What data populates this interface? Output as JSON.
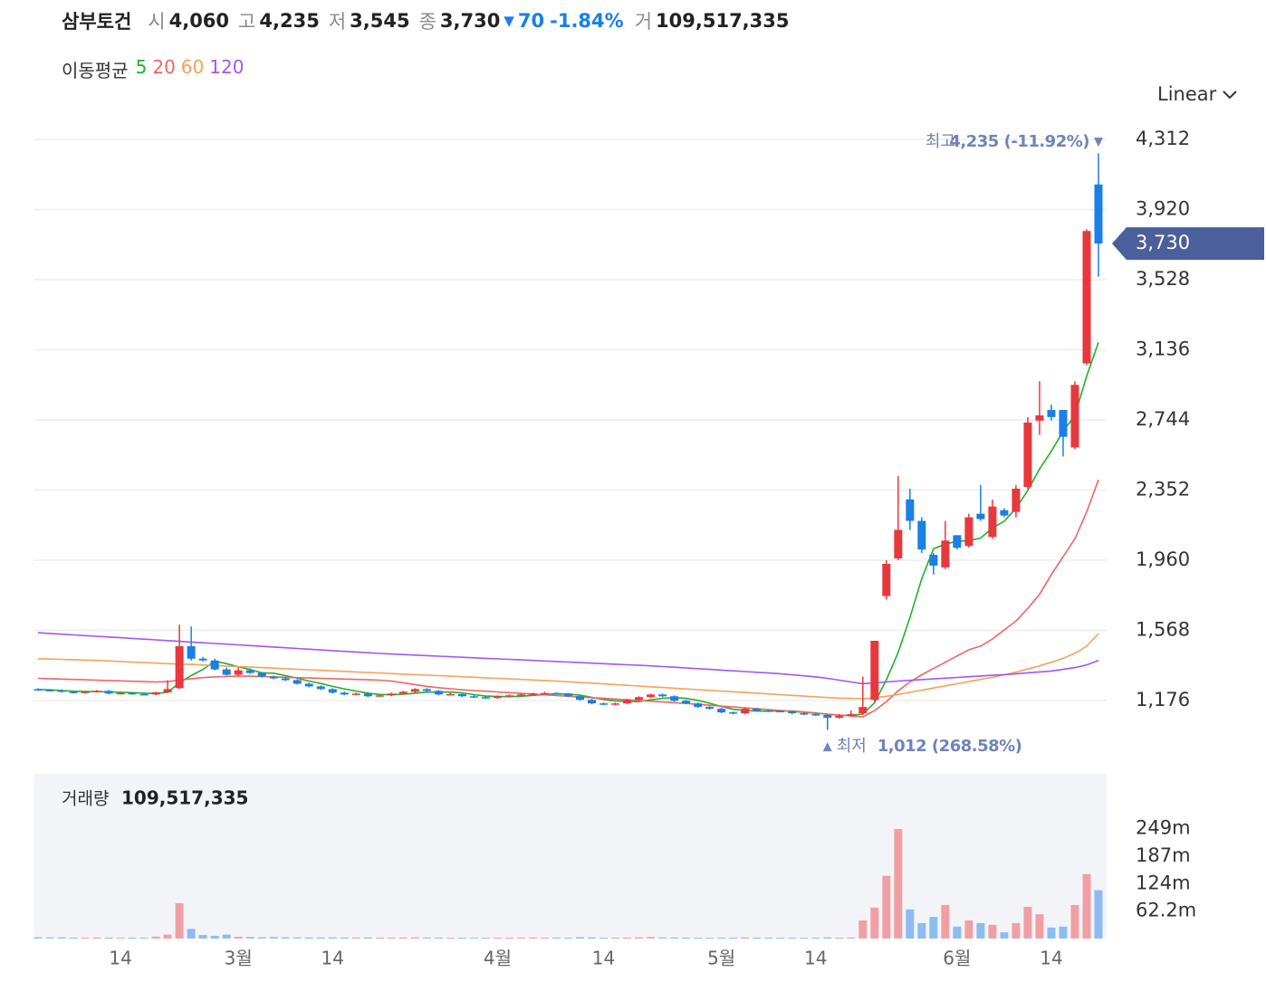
{
  "header": {
    "name": "삼부토건",
    "open_label": "시",
    "open": "4,060",
    "high_label": "고",
    "high": "4,235",
    "low_label": "저",
    "low": "3,545",
    "close_label": "종",
    "close": "3,730",
    "change": "70",
    "change_rate": "-1.84%",
    "volume_label": "거",
    "volume": "109,517,335",
    "scale_mode": "Linear"
  },
  "chart_data": [
    {
      "type": "candlestick",
      "legend_title": "이동평균",
      "categories": [
        null,
        null,
        null,
        null,
        null,
        null,
        null,
        "14",
        null,
        null,
        null,
        null,
        null,
        null,
        null,
        null,
        null,
        "3월",
        null,
        null,
        null,
        null,
        null,
        null,
        null,
        "14",
        null,
        null,
        null,
        null,
        null,
        null,
        null,
        null,
        null,
        null,
        null,
        null,
        null,
        "4월",
        null,
        null,
        null,
        null,
        null,
        null,
        null,
        null,
        "14",
        null,
        null,
        null,
        null,
        null,
        null,
        null,
        null,
        null,
        "5월",
        null,
        null,
        null,
        null,
        null,
        null,
        null,
        "14",
        null,
        null,
        null,
        null,
        null,
        null,
        null,
        null,
        null,
        null,
        null,
        "6월",
        null,
        null,
        null,
        null,
        null,
        null,
        null,
        "14",
        null,
        null,
        null,
        null
      ],
      "open": [
        1240,
        1235,
        1232,
        1225,
        1220,
        1225,
        1230,
        1215,
        1218,
        1212,
        1210,
        1222,
        1245,
        1480,
        1410,
        1400,
        1350,
        1320,
        1345,
        1330,
        1310,
        1300,
        1290,
        1270,
        1255,
        1240,
        1220,
        1210,
        1215,
        1200,
        1205,
        1215,
        1225,
        1240,
        1230,
        1210,
        1212,
        1200,
        1195,
        1190,
        1200,
        1205,
        1210,
        1215,
        1218,
        1215,
        1200,
        1180,
        1160,
        1155,
        1160,
        1180,
        1195,
        1210,
        1200,
        1175,
        1160,
        1140,
        1130,
        1110,
        1105,
        1130,
        1120,
        1118,
        1115,
        1105,
        1100,
        1095,
        1080,
        1090,
        1105,
        1180,
        1760,
        1970,
        2300,
        2180,
        1990,
        1920,
        2100,
        2040,
        2220,
        2090,
        2240,
        2230,
        2370,
        2740,
        2800,
        2800,
        2590,
        3060,
        4060
      ],
      "high": [
        1245,
        1240,
        1238,
        1230,
        1230,
        1235,
        1235,
        1222,
        1222,
        1218,
        1225,
        1290,
        1600,
        1590,
        1420,
        1410,
        1360,
        1360,
        1355,
        1335,
        1315,
        1305,
        1295,
        1275,
        1260,
        1245,
        1225,
        1220,
        1220,
        1210,
        1220,
        1230,
        1245,
        1245,
        1235,
        1218,
        1215,
        1205,
        1200,
        1205,
        1210,
        1215,
        1220,
        1225,
        1222,
        1218,
        1205,
        1185,
        1165,
        1165,
        1185,
        1200,
        1215,
        1215,
        1205,
        1180,
        1165,
        1145,
        1135,
        1115,
        1135,
        1135,
        1125,
        1122,
        1118,
        1110,
        1105,
        1100,
        1100,
        1120,
        1310,
        1510,
        1960,
        2430,
        2360,
        2200,
        2000,
        2180,
        2090,
        2220,
        2380,
        2300,
        2250,
        2380,
        2760,
        2960,
        2830,
        2800,
        2960,
        3810,
        4235
      ],
      "low": [
        1230,
        1228,
        1220,
        1215,
        1215,
        1220,
        1210,
        1210,
        1208,
        1205,
        1205,
        1218,
        1240,
        1400,
        1395,
        1345,
        1315,
        1315,
        1325,
        1305,
        1295,
        1285,
        1265,
        1250,
        1235,
        1215,
        1205,
        1205,
        1195,
        1198,
        1200,
        1210,
        1220,
        1225,
        1205,
        1205,
        1195,
        1190,
        1185,
        1185,
        1195,
        1200,
        1205,
        1210,
        1210,
        1195,
        1175,
        1155,
        1150,
        1150,
        1155,
        1175,
        1190,
        1195,
        1170,
        1155,
        1135,
        1125,
        1105,
        1100,
        1100,
        1115,
        1112,
        1110,
        1100,
        1095,
        1090,
        1012,
        1075,
        1085,
        1095,
        1170,
        1740,
        1960,
        2130,
        2000,
        1880,
        1910,
        2020,
        2030,
        2180,
        2080,
        2200,
        2200,
        2360,
        2660,
        2740,
        2540,
        2580,
        3050,
        3545
      ],
      "close": [
        1235,
        1232,
        1225,
        1220,
        1225,
        1230,
        1215,
        1218,
        1212,
        1210,
        1222,
        1240,
        1480,
        1410,
        1400,
        1350,
        1320,
        1345,
        1330,
        1310,
        1300,
        1290,
        1270,
        1255,
        1240,
        1220,
        1210,
        1215,
        1200,
        1205,
        1215,
        1225,
        1240,
        1230,
        1210,
        1212,
        1200,
        1195,
        1190,
        1200,
        1205,
        1210,
        1215,
        1218,
        1215,
        1200,
        1180,
        1160,
        1155,
        1160,
        1180,
        1195,
        1210,
        1200,
        1175,
        1160,
        1140,
        1130,
        1110,
        1105,
        1130,
        1120,
        1118,
        1115,
        1105,
        1100,
        1095,
        1080,
        1090,
        1100,
        1140,
        1510,
        1940,
        2130,
        2180,
        2020,
        1930,
        2070,
        2030,
        2200,
        2190,
        2260,
        2210,
        2360,
        2730,
        2770,
        2760,
        2650,
        2940,
        3800,
        3730
      ],
      "up_color": "#e8383d",
      "down_color": "#1a7fe6",
      "series": [
        {
          "name": "5",
          "color": "#22b02a",
          "values": [
            1238,
            1236,
            1232,
            1228,
            1226,
            1226,
            1224,
            1222,
            1220,
            1217,
            1215,
            1222,
            1275,
            1315,
            1350,
            1396,
            1382,
            1365,
            1349,
            1331,
            1329,
            1315,
            1301,
            1285,
            1271,
            1255,
            1241,
            1229,
            1217,
            1210,
            1209,
            1212,
            1217,
            1223,
            1224,
            1223,
            1219,
            1209,
            1201,
            1199,
            1198,
            1200,
            1205,
            1210,
            1213,
            1212,
            1206,
            1194,
            1182,
            1174,
            1171,
            1170,
            1180,
            1189,
            1192,
            1188,
            1177,
            1161,
            1143,
            1127,
            1121,
            1117,
            1117,
            1118,
            1118,
            1112,
            1107,
            1099,
            1094,
            1093,
            1101,
            1164,
            1292,
            1444,
            1640,
            1856,
            2024,
            2050,
            2066,
            2070,
            2084,
            2140,
            2178,
            2250,
            2350,
            2470,
            2570,
            2680,
            2770,
            2990,
            3178
          ]
        },
        {
          "name": "20",
          "color": "#f06464",
          "values": [
            1300,
            1298,
            1296,
            1294,
            1292,
            1290,
            1288,
            1286,
            1284,
            1282,
            1280,
            1282,
            1290,
            1298,
            1304,
            1308,
            1310,
            1312,
            1312,
            1310,
            1308,
            1306,
            1304,
            1302,
            1300,
            1298,
            1296,
            1294,
            1292,
            1290,
            1285,
            1275,
            1265,
            1255,
            1248,
            1242,
            1236,
            1232,
            1228,
            1224,
            1220,
            1216,
            1212,
            1208,
            1204,
            1200,
            1196,
            1192,
            1188,
            1184,
            1180,
            1176,
            1172,
            1168,
            1164,
            1160,
            1155,
            1150,
            1145,
            1140,
            1135,
            1130,
            1125,
            1120,
            1115,
            1110,
            1105,
            1100,
            1095,
            1090,
            1085,
            1120,
            1170,
            1230,
            1280,
            1320,
            1355,
            1390,
            1425,
            1460,
            1480,
            1520,
            1570,
            1620,
            1690,
            1770,
            1880,
            1980,
            2080,
            2230,
            2410
          ]
        },
        {
          "name": "60",
          "color": "#f5a25a",
          "values": [
            1410,
            1408,
            1406,
            1404,
            1402,
            1400,
            1397,
            1394,
            1391,
            1388,
            1385,
            1382,
            1380,
            1378,
            1375,
            1372,
            1369,
            1366,
            1363,
            1360,
            1357,
            1354,
            1351,
            1348,
            1345,
            1342,
            1339,
            1336,
            1333,
            1330,
            1327,
            1324,
            1321,
            1318,
            1315,
            1312,
            1309,
            1306,
            1303,
            1300,
            1297,
            1294,
            1291,
            1288,
            1285,
            1281,
            1277,
            1273,
            1269,
            1265,
            1261,
            1257,
            1253,
            1249,
            1245,
            1241,
            1237,
            1233,
            1229,
            1225,
            1221,
            1217,
            1213,
            1209,
            1205,
            1201,
            1197,
            1193,
            1190,
            1188,
            1186,
            1192,
            1200,
            1210,
            1222,
            1234,
            1246,
            1258,
            1270,
            1282,
            1294,
            1306,
            1320,
            1335,
            1352,
            1370,
            1390,
            1412,
            1440,
            1480,
            1550
          ]
        },
        {
          "name": "120",
          "color": "#a356f0",
          "values": [
            1555,
            1551,
            1547,
            1543,
            1539,
            1535,
            1531,
            1527,
            1523,
            1519,
            1515,
            1511,
            1507,
            1503,
            1499,
            1495,
            1491,
            1487,
            1483,
            1479,
            1475,
            1471,
            1467,
            1463,
            1459,
            1455,
            1451,
            1447,
            1443,
            1439,
            1436,
            1433,
            1430,
            1427,
            1424,
            1421,
            1418,
            1415,
            1412,
            1409,
            1406,
            1403,
            1400,
            1397,
            1394,
            1391,
            1388,
            1385,
            1382,
            1379,
            1376,
            1373,
            1370,
            1366,
            1362,
            1358,
            1354,
            1350,
            1346,
            1342,
            1338,
            1334,
            1330,
            1326,
            1320,
            1314,
            1308,
            1300,
            1290,
            1280,
            1270,
            1275,
            1280,
            1285,
            1289,
            1293,
            1297,
            1301,
            1305,
            1309,
            1313,
            1317,
            1321,
            1326,
            1331,
            1336,
            1341,
            1350,
            1360,
            1375,
            1400
          ]
        }
      ],
      "ylim": [
        817,
        4484
      ],
      "yticks": [
        {
          "value": 1176,
          "label": "1,176"
        },
        {
          "value": 1568,
          "label": "1,568"
        },
        {
          "value": 1960,
          "label": "1,960"
        },
        {
          "value": 2352,
          "label": "2,352"
        },
        {
          "value": 2744,
          "label": "2,744"
        },
        {
          "value": 3136,
          "label": "3,136"
        },
        {
          "value": 3528,
          "label": "3,528"
        },
        {
          "value": 3920,
          "label": "3,920"
        },
        {
          "value": 4312,
          "label": "4,312"
        }
      ],
      "grid": true,
      "high_annotation": {
        "label": "최고",
        "text": "4,235 (-11.92%)"
      },
      "low_annotation": {
        "label": "최저",
        "text": "1,012 (268.58%)"
      },
      "last_price_label": "3,730"
    },
    {
      "type": "bar",
      "title": "거래량",
      "current_label": "109,517,335",
      "values": [
        3000000,
        2500000,
        2800000,
        2200000,
        2000000,
        2400000,
        2100000,
        1900000,
        2200000,
        2000000,
        4500000,
        9000000,
        80000000,
        22000000,
        8000000,
        6000000,
        9000000,
        4000000,
        3500000,
        3000000,
        3200000,
        2800000,
        2600000,
        2500000,
        2400000,
        2600000,
        2300000,
        2200000,
        2400000,
        2100000,
        2000000,
        2200000,
        2600000,
        2300000,
        2100000,
        1900000,
        2000000,
        1800000,
        1900000,
        2000000,
        2100000,
        2300000,
        2400000,
        2200000,
        2300000,
        2000000,
        3000000,
        2600000,
        2100000,
        2000000,
        2400000,
        2600000,
        3500000,
        2400000,
        2300000,
        2100000,
        2000000,
        1900000,
        2100000,
        2000000,
        2500000,
        2200000,
        2000000,
        2100000,
        1900000,
        1800000,
        2000000,
        2600000,
        2200000,
        2400000,
        41000000,
        70000000,
        142000000,
        248000000,
        66000000,
        35000000,
        49000000,
        76000000,
        27000000,
        41000000,
        35000000,
        31000000,
        14000000,
        35000000,
        72000000,
        55000000,
        25000000,
        27000000,
        76000000,
        146000000,
        109517335
      ],
      "up_color": "#f0a0a4",
      "down_color": "#8cbcf0",
      "ylim": [
        0,
        373000000
      ],
      "yticks": [
        {
          "value": 62200000,
          "label": "62.2m"
        },
        {
          "value": 124000000,
          "label": "124m"
        },
        {
          "value": 187000000,
          "label": "187m"
        },
        {
          "value": 249000000,
          "label": "249m"
        }
      ]
    }
  ]
}
